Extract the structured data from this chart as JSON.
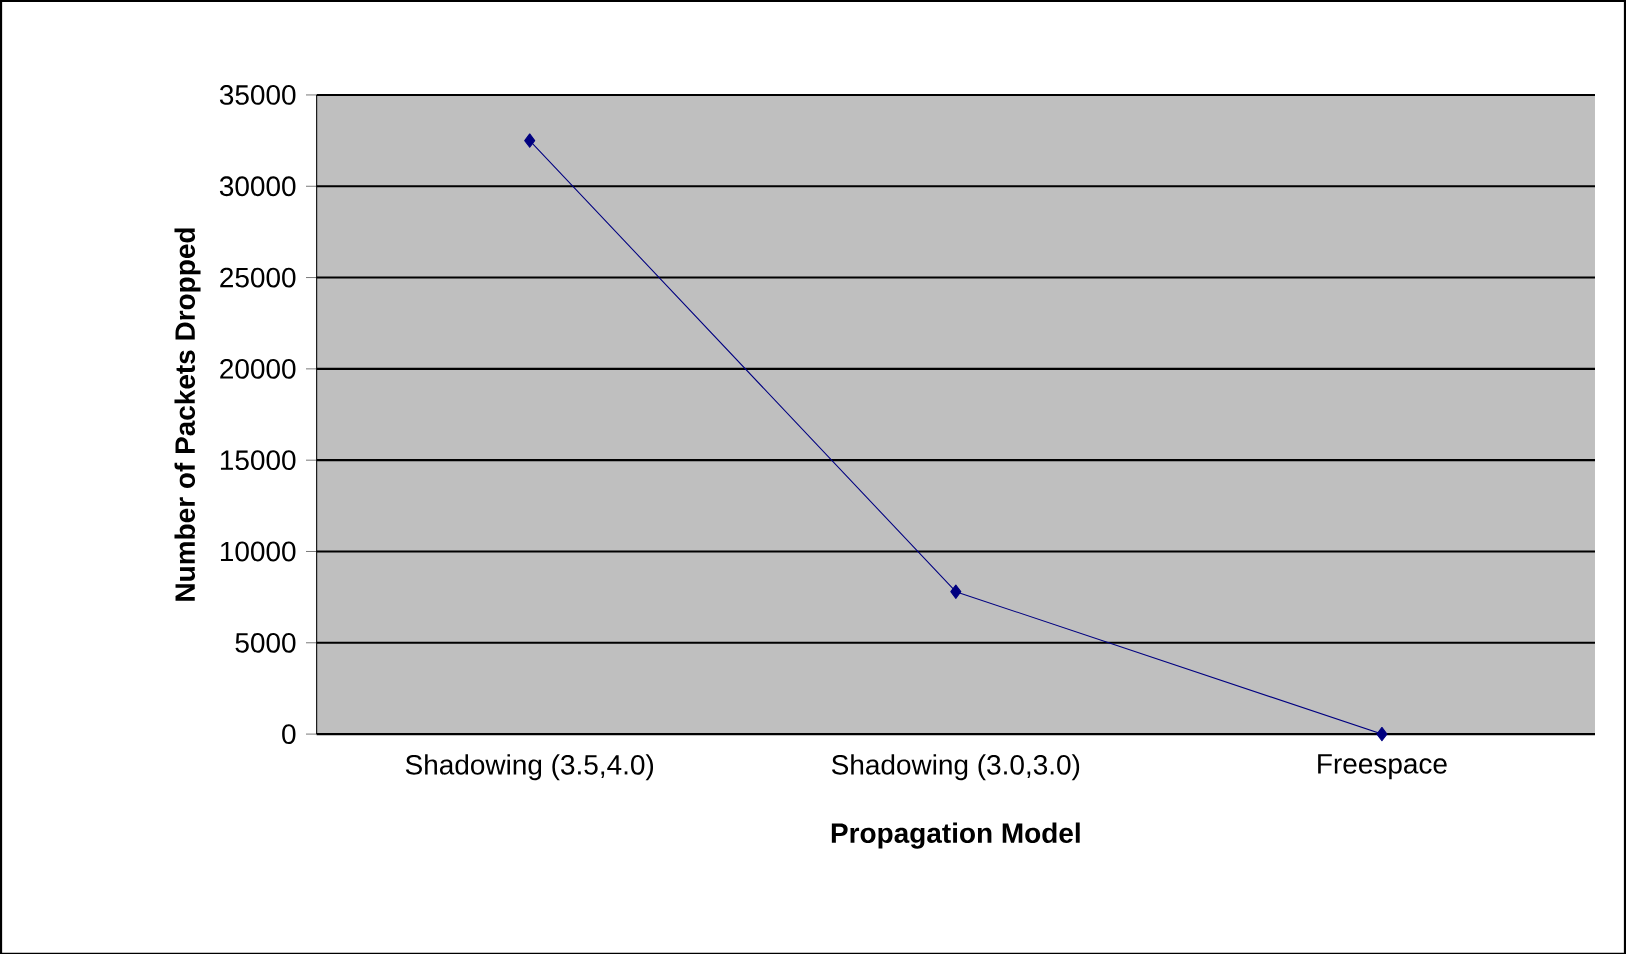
{
  "chart_data": {
    "type": "line",
    "xlabel": "Propagation Model",
    "ylabel": "Number of Packets Dropped",
    "categories": [
      "Shadowing (3.5,4.0)",
      "Shadowing (3.0,3.0)",
      "Freespace"
    ],
    "series": [
      {
        "color": "#000080",
        "values": [
          32500,
          7800,
          0
        ]
      }
    ],
    "ylim": [
      0,
      35000
    ],
    "yticks": [
      0,
      5000,
      10000,
      15000,
      20000,
      25000,
      30000,
      35000
    ],
    "grid": "y",
    "marker": "diamond",
    "line_style": "solid"
  }
}
